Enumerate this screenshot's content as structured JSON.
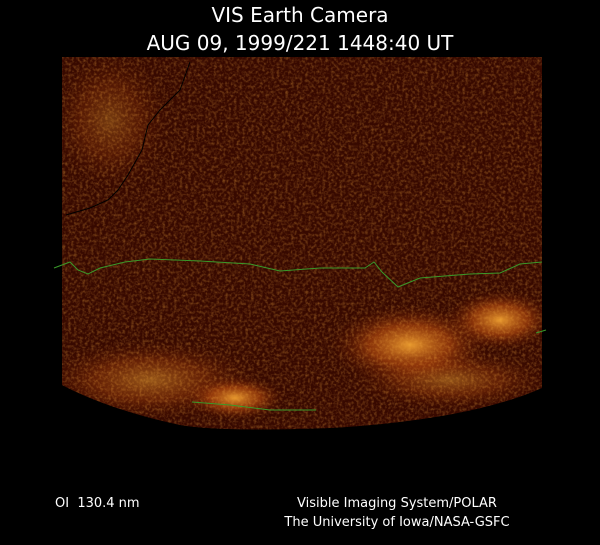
{
  "header": {
    "title": "VIS Earth Camera",
    "timestamp": "AUG 09, 1999/221 1448:40 UT"
  },
  "footer": {
    "filter": "OI  130.4 nm",
    "instrument": "Visible Imaging System/POLAR",
    "institution": "The University of Iowa/NASA-GSFC"
  }
}
